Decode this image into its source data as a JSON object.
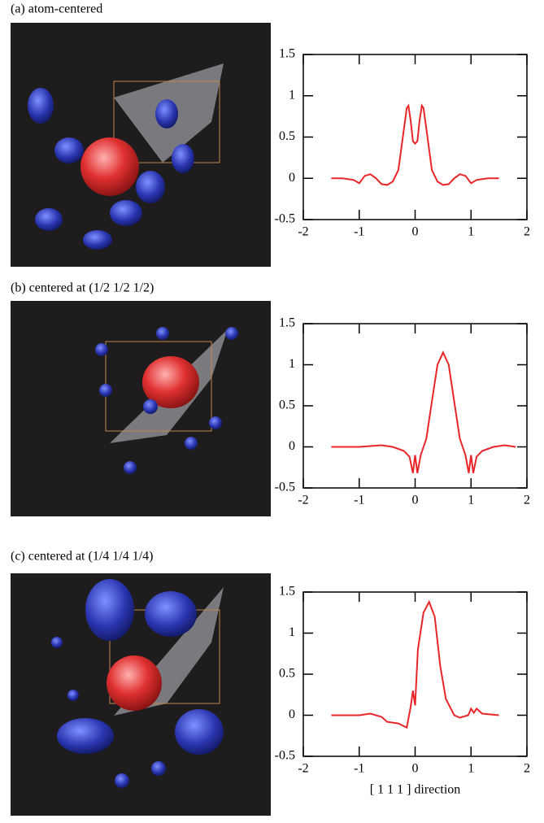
{
  "chart_data": [
    {
      "type": "line",
      "title": "(a) atom-centered",
      "color": "#e8262a",
      "x": [
        -1.5,
        -1.3,
        -1.1,
        -1.0,
        -0.9,
        -0.8,
        -0.7,
        -0.6,
        -0.5,
        -0.4,
        -0.3,
        -0.2,
        -0.15,
        -0.12,
        -0.08,
        -0.04,
        0,
        0.04,
        0.08,
        0.12,
        0.15,
        0.2,
        0.3,
        0.4,
        0.5,
        0.6,
        0.7,
        0.8,
        0.9,
        1.0,
        1.1,
        1.3,
        1.5
      ],
      "values": [
        0,
        0,
        -0.02,
        -0.06,
        0.03,
        0.05,
        0.0,
        -0.07,
        -0.08,
        -0.04,
        0.1,
        0.6,
        0.85,
        0.88,
        0.7,
        0.45,
        0.42,
        0.45,
        0.7,
        0.88,
        0.85,
        0.6,
        0.1,
        -0.04,
        -0.08,
        -0.07,
        0.0,
        0.05,
        0.03,
        -0.06,
        -0.02,
        0,
        0
      ],
      "xlim": [
        -2,
        2
      ],
      "ylim": [
        -0.5,
        1.5
      ],
      "xticks": [
        -2,
        -1,
        0,
        1,
        2
      ],
      "yticks": [
        -0.5,
        0,
        0.5,
        1,
        1.5
      ]
    },
    {
      "type": "line",
      "title": "(b) centered at (1/2 1/2 1/2)",
      "color": "#e8262a",
      "x": [
        -1.5,
        -1.0,
        -0.6,
        -0.4,
        -0.2,
        -0.1,
        -0.04,
        0,
        0.04,
        0.1,
        0.2,
        0.3,
        0.4,
        0.5,
        0.6,
        0.7,
        0.8,
        0.9,
        0.96,
        1.0,
        1.04,
        1.1,
        1.2,
        1.4,
        1.6,
        1.8
      ],
      "values": [
        0,
        0,
        0.02,
        0,
        -0.05,
        -0.12,
        -0.32,
        -0.1,
        -0.32,
        -0.1,
        0.1,
        0.55,
        1.0,
        1.15,
        1.0,
        0.55,
        0.1,
        -0.1,
        -0.32,
        -0.1,
        -0.32,
        -0.12,
        -0.05,
        0,
        0.02,
        0
      ],
      "xlim": [
        -2,
        2
      ],
      "ylim": [
        -0.5,
        1.5
      ],
      "xticks": [
        -2,
        -1,
        0,
        1,
        2
      ],
      "yticks": [
        -0.5,
        0,
        0.5,
        1,
        1.5
      ]
    },
    {
      "type": "line",
      "title": "(c) centered at (1/4 1/4 1/4)",
      "color": "#e8262a",
      "x": [
        -1.5,
        -1.0,
        -0.8,
        -0.6,
        -0.5,
        -0.3,
        -0.15,
        -0.08,
        -0.04,
        0,
        0.05,
        0.15,
        0.25,
        0.35,
        0.45,
        0.55,
        0.7,
        0.8,
        0.95,
        1.0,
        1.05,
        1.1,
        1.2,
        1.5
      ],
      "values": [
        0,
        0,
        0.02,
        -0.02,
        -0.08,
        -0.1,
        -0.15,
        0.1,
        0.3,
        0.12,
        0.8,
        1.25,
        1.38,
        1.2,
        0.6,
        0.2,
        0.0,
        -0.03,
        0,
        0.08,
        0.03,
        0.08,
        0.02,
        0
      ],
      "xlim": [
        -2,
        2
      ],
      "ylim": [
        -0.5,
        1.5
      ],
      "xticks": [
        -2,
        -1,
        0,
        1,
        2
      ],
      "yticks": [
        -0.5,
        0,
        0.5,
        1,
        1.5
      ],
      "xlabel": "[ 1 1 1 ]  direction"
    }
  ]
}
